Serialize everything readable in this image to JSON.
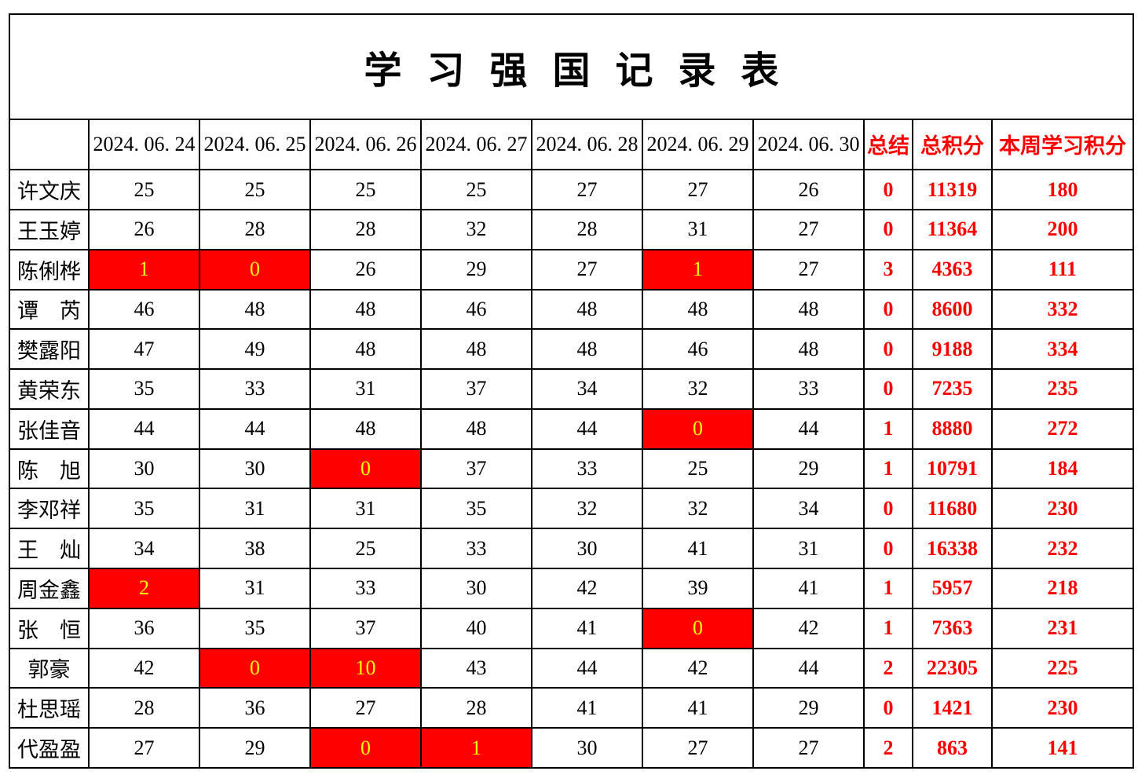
{
  "page_title": "学习强国记录表",
  "table": {
    "corner_label": "",
    "columns": {
      "dates": [
        "2024. 06. 24",
        "2024. 06. 25",
        "2024. 06. 26",
        "2024. 06. 27",
        "2024. 06. 28",
        "2024. 06. 29",
        "2024. 06. 30"
      ],
      "summary": "总结",
      "total": "总积分",
      "week": "本周学习积分"
    },
    "rows": [
      {
        "name": "许文庆",
        "days": [
          25,
          25,
          25,
          25,
          27,
          27,
          26
        ],
        "highlighted_days": [],
        "summary": 0,
        "total_points": 11319,
        "week_points": 180
      },
      {
        "name": "王玉婷",
        "days": [
          26,
          28,
          28,
          32,
          28,
          31,
          27
        ],
        "highlighted_days": [],
        "summary": 0,
        "total_points": 11364,
        "week_points": 200
      },
      {
        "name": "陈俐桦",
        "days": [
          1,
          0,
          26,
          29,
          27,
          1,
          27
        ],
        "highlighted_days": [
          0,
          1,
          5
        ],
        "summary": 3,
        "total_points": 4363,
        "week_points": 111
      },
      {
        "name": "谭　芮",
        "days": [
          46,
          48,
          48,
          46,
          48,
          48,
          48
        ],
        "highlighted_days": [],
        "summary": 0,
        "total_points": 8600,
        "week_points": 332
      },
      {
        "name": "樊露阳",
        "days": [
          47,
          49,
          48,
          48,
          48,
          46,
          48
        ],
        "highlighted_days": [],
        "summary": 0,
        "total_points": 9188,
        "week_points": 334
      },
      {
        "name": "黄荣东",
        "days": [
          35,
          33,
          31,
          37,
          34,
          32,
          33
        ],
        "highlighted_days": [],
        "summary": 0,
        "total_points": 7235,
        "week_points": 235
      },
      {
        "name": "张佳音",
        "days": [
          44,
          44,
          48,
          48,
          44,
          0,
          44
        ],
        "highlighted_days": [
          5
        ],
        "summary": 1,
        "total_points": 8880,
        "week_points": 272
      },
      {
        "name": "陈　旭",
        "days": [
          30,
          30,
          0,
          37,
          33,
          25,
          29
        ],
        "highlighted_days": [
          2
        ],
        "summary": 1,
        "total_points": 10791,
        "week_points": 184
      },
      {
        "name": "李邓祥",
        "days": [
          35,
          31,
          31,
          35,
          32,
          32,
          34
        ],
        "highlighted_days": [],
        "summary": 0,
        "total_points": 11680,
        "week_points": 230
      },
      {
        "name": "王　灿",
        "days": [
          34,
          38,
          25,
          33,
          30,
          41,
          31
        ],
        "highlighted_days": [],
        "summary": 0,
        "total_points": 16338,
        "week_points": 232
      },
      {
        "name": "周金鑫",
        "days": [
          2,
          31,
          33,
          30,
          42,
          39,
          41
        ],
        "highlighted_days": [
          0
        ],
        "summary": 1,
        "total_points": 5957,
        "week_points": 218
      },
      {
        "name": "张　恒",
        "days": [
          36,
          35,
          37,
          40,
          41,
          0,
          42
        ],
        "highlighted_days": [
          5
        ],
        "summary": 1,
        "total_points": 7363,
        "week_points": 231
      },
      {
        "name": "郭豪",
        "days": [
          42,
          0,
          10,
          43,
          44,
          42,
          44
        ],
        "highlighted_days": [
          1,
          2
        ],
        "summary": 2,
        "total_points": 22305,
        "week_points": 225
      },
      {
        "name": "杜思瑶",
        "days": [
          28,
          36,
          27,
          28,
          41,
          41,
          29
        ],
        "highlighted_days": [],
        "summary": 0,
        "total_points": 1421,
        "week_points": 230
      },
      {
        "name": "代盈盈",
        "days": [
          27,
          29,
          0,
          1,
          30,
          27,
          27
        ],
        "highlighted_days": [
          2,
          3
        ],
        "summary": 2,
        "total_points": 863,
        "week_points": 141
      }
    ]
  },
  "colors": {
    "grid_line": "#000000",
    "header_text": "#000000",
    "accent_red": "#ff0000",
    "highlight_background": "#ff0000",
    "highlight_text": "#ffff00"
  }
}
